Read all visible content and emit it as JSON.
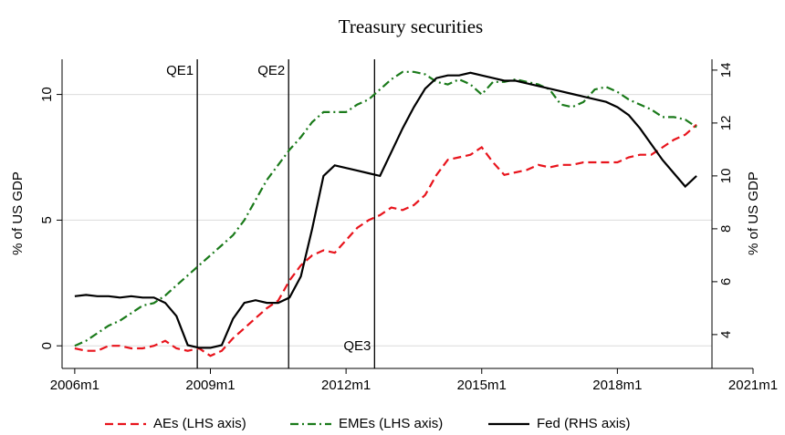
{
  "chart_data": {
    "type": "line",
    "title": "Treasury securities",
    "y_label": "% of US GDP",
    "y2_label": "% of US GDP",
    "x": [
      2006,
      2006.25,
      2006.5,
      2006.75,
      2007,
      2007.25,
      2007.5,
      2007.75,
      2008,
      2008.25,
      2008.5,
      2008.75,
      2009,
      2009.25,
      2009.5,
      2009.75,
      2010,
      2010.25,
      2010.5,
      2010.75,
      2011,
      2011.25,
      2011.5,
      2011.75,
      2012,
      2012.25,
      2012.5,
      2012.75,
      2013,
      2013.25,
      2013.5,
      2013.75,
      2014,
      2014.25,
      2014.5,
      2014.75,
      2015,
      2015.25,
      2015.5,
      2015.75,
      2016,
      2016.25,
      2016.5,
      2016.75,
      2017,
      2017.25,
      2017.5,
      2017.75,
      2018,
      2018.25,
      2018.5,
      2018.75,
      2019,
      2019.25,
      2019.5,
      2019.75
    ],
    "series": [
      {
        "name": "AEs (LHS axis)",
        "color": "#e8141c",
        "style": "dash",
        "axis": "y",
        "values": [
          -0.1,
          -0.2,
          -0.2,
          0.0,
          0.0,
          -0.1,
          -0.1,
          0.0,
          0.2,
          -0.1,
          -0.2,
          -0.1,
          -0.4,
          -0.2,
          0.3,
          0.7,
          1.1,
          1.5,
          1.8,
          2.6,
          3.2,
          3.6,
          3.8,
          3.7,
          4.2,
          4.7,
          5.0,
          5.2,
          5.5,
          5.4,
          5.6,
          6.0,
          6.8,
          7.4,
          7.5,
          7.6,
          7.9,
          7.3,
          6.8,
          6.9,
          7.0,
          7.2,
          7.1,
          7.2,
          7.2,
          7.3,
          7.3,
          7.3,
          7.3,
          7.5,
          7.6,
          7.6,
          7.9,
          8.2,
          8.4,
          8.8
        ]
      },
      {
        "name": "EMEs (LHS axis)",
        "color": "#1a7a1a",
        "style": "dashdot",
        "axis": "y",
        "values": [
          0.0,
          0.2,
          0.5,
          0.8,
          1.0,
          1.3,
          1.6,
          1.7,
          2.0,
          2.4,
          2.8,
          3.2,
          3.6,
          4.0,
          4.4,
          5.0,
          5.8,
          6.6,
          7.2,
          7.8,
          8.3,
          8.9,
          9.3,
          9.3,
          9.3,
          9.6,
          9.8,
          10.2,
          10.6,
          10.9,
          10.9,
          10.8,
          10.5,
          10.4,
          10.6,
          10.4,
          10.0,
          10.5,
          10.5,
          10.6,
          10.5,
          10.4,
          10.2,
          9.6,
          9.5,
          9.7,
          10.2,
          10.3,
          10.1,
          9.8,
          9.6,
          9.4,
          9.1,
          9.1,
          9.0,
          8.7
        ]
      },
      {
        "name": "Fed (RHS axis)",
        "color": "#000000",
        "style": "solid",
        "axis": "y2",
        "values": [
          5.45,
          5.5,
          5.45,
          5.45,
          5.4,
          5.45,
          5.4,
          5.4,
          5.2,
          4.7,
          3.6,
          3.5,
          3.5,
          3.6,
          4.6,
          5.2,
          5.3,
          5.2,
          5.2,
          5.4,
          6.2,
          8.0,
          10.0,
          10.4,
          10.3,
          10.2,
          10.1,
          10.0,
          10.9,
          11.8,
          12.6,
          13.3,
          13.7,
          13.8,
          13.8,
          13.9,
          13.8,
          13.7,
          13.6,
          13.6,
          13.5,
          13.4,
          13.3,
          13.2,
          13.1,
          13.0,
          12.9,
          12.8,
          12.6,
          12.3,
          11.8,
          11.2,
          10.6,
          10.1,
          9.6,
          10.0
        ]
      }
    ],
    "events": [
      {
        "x": 2008.71,
        "label": "QE1",
        "position": "top"
      },
      {
        "x": 2010.73,
        "label": "QE2",
        "position": "top"
      },
      {
        "x": 2012.63,
        "label": "QE3",
        "position": "bottom"
      }
    ],
    "xlim": [
      2005.72,
      2021
    ],
    "xticks": [
      {
        "value": 2006,
        "label": "2006m1"
      },
      {
        "value": 2009,
        "label": "2009m1"
      },
      {
        "value": 2012,
        "label": "2012m1"
      },
      {
        "value": 2015,
        "label": "2015m1"
      },
      {
        "value": 2018,
        "label": "2018m1"
      },
      {
        "value": 2021,
        "label": "2021m1"
      }
    ],
    "ylim": [
      -0.9,
      11.4
    ],
    "yticks": [
      0,
      5,
      10
    ],
    "y2lim": [
      2.72,
      14.41
    ],
    "y2ticks": [
      4,
      6,
      8,
      10,
      12,
      14
    ],
    "grid": true,
    "legend": "bottom"
  }
}
